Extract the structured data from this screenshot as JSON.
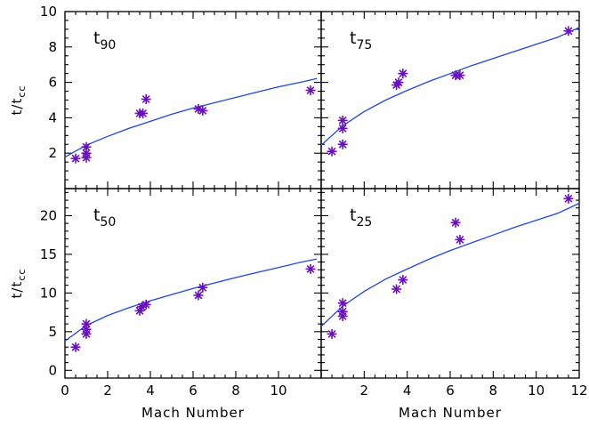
{
  "chart_data": [
    {
      "type": "scatter",
      "panel_label": "t",
      "panel_label_sub": "90",
      "xlim": [
        0,
        12
      ],
      "ylim": [
        0,
        10
      ],
      "xticks": [
        0,
        2,
        4,
        6,
        8,
        10
      ],
      "yticks": [
        2,
        4,
        6,
        8,
        10
      ],
      "ylabel": "t/t",
      "ylabel_sub": "cc",
      "xlabel": "",
      "points": [
        [
          0.5,
          1.7
        ],
        [
          1.0,
          1.75
        ],
        [
          1.0,
          2.0
        ],
        [
          1.0,
          2.35
        ],
        [
          3.5,
          4.25
        ],
        [
          3.65,
          4.25
        ],
        [
          3.8,
          5.05
        ],
        [
          6.25,
          4.5
        ],
        [
          6.45,
          4.4
        ],
        [
          11.5,
          5.55
        ]
      ],
      "fit": [
        [
          0,
          1.78
        ],
        [
          1,
          2.45
        ],
        [
          2,
          2.95
        ],
        [
          3,
          3.4
        ],
        [
          4,
          3.8
        ],
        [
          5,
          4.2
        ],
        [
          6,
          4.55
        ],
        [
          7,
          4.85
        ],
        [
          8,
          5.15
        ],
        [
          9,
          5.45
        ],
        [
          10,
          5.75
        ],
        [
          11,
          6.0
        ],
        [
          11.8,
          6.22
        ]
      ]
    },
    {
      "type": "scatter",
      "panel_label": "t",
      "panel_label_sub": "75",
      "xlim": [
        0,
        12
      ],
      "ylim": [
        0,
        10
      ],
      "xticks": [],
      "yticks": [],
      "ylabel": "",
      "ylabel_sub": "",
      "xlabel": "",
      "points": [
        [
          0.5,
          2.1
        ],
        [
          1.0,
          2.5
        ],
        [
          1.0,
          3.4
        ],
        [
          1.0,
          3.85
        ],
        [
          3.5,
          5.85
        ],
        [
          3.6,
          6.0
        ],
        [
          3.8,
          6.5
        ],
        [
          6.25,
          6.4
        ],
        [
          6.45,
          6.4
        ],
        [
          11.5,
          8.9
        ]
      ],
      "fit": [
        [
          0,
          2.45
        ],
        [
          1,
          3.55
        ],
        [
          2,
          4.35
        ],
        [
          3,
          5.0
        ],
        [
          4,
          5.55
        ],
        [
          5,
          6.05
        ],
        [
          6,
          6.5
        ],
        [
          7,
          6.95
        ],
        [
          8,
          7.35
        ],
        [
          9,
          7.75
        ],
        [
          10,
          8.15
        ],
        [
          11,
          8.55
        ],
        [
          12,
          9.1
        ]
      ]
    },
    {
      "type": "scatter",
      "panel_label": "t",
      "panel_label_sub": "50",
      "xlim": [
        0,
        12
      ],
      "ylim": [
        -1,
        23.5
      ],
      "xticks": [
        0,
        2,
        4,
        6,
        8,
        10
      ],
      "yticks": [
        0,
        5,
        10,
        15,
        20
      ],
      "ylabel": "t/t",
      "ylabel_sub": "cc",
      "xlabel": "Mach Number",
      "points": [
        [
          0.5,
          3.0
        ],
        [
          1.0,
          4.7
        ],
        [
          1.0,
          5.3
        ],
        [
          1.0,
          6.0
        ],
        [
          3.5,
          7.7
        ],
        [
          3.6,
          8.2
        ],
        [
          3.8,
          8.5
        ],
        [
          6.25,
          9.7
        ],
        [
          6.45,
          10.7
        ],
        [
          11.5,
          13.1
        ]
      ],
      "fit": [
        [
          0,
          3.8
        ],
        [
          1,
          5.8
        ],
        [
          2,
          7.1
        ],
        [
          3,
          8.1
        ],
        [
          4,
          9.0
        ],
        [
          5,
          9.8
        ],
        [
          6,
          10.6
        ],
        [
          7,
          11.3
        ],
        [
          8,
          12.0
        ],
        [
          9,
          12.65
        ],
        [
          10,
          13.3
        ],
        [
          11,
          13.95
        ],
        [
          11.8,
          14.4
        ]
      ]
    },
    {
      "type": "scatter",
      "panel_label": "t",
      "panel_label_sub": "25",
      "xlim": [
        0,
        12
      ],
      "ylim": [
        -1,
        23.5
      ],
      "xticks": [
        2,
        4,
        6,
        8,
        10,
        12
      ],
      "yticks": [],
      "ylabel": "",
      "ylabel_sub": "",
      "xlabel": "Mach Number",
      "points": [
        [
          0.5,
          4.7
        ],
        [
          1.0,
          7.0
        ],
        [
          1.0,
          7.6
        ],
        [
          1.0,
          8.7
        ],
        [
          3.5,
          10.5
        ],
        [
          3.8,
          11.7
        ],
        [
          6.25,
          19.1
        ],
        [
          6.45,
          16.9
        ],
        [
          11.5,
          22.2
        ]
      ],
      "fit": [
        [
          0,
          5.7
        ],
        [
          1,
          8.3
        ],
        [
          2,
          10.2
        ],
        [
          3,
          11.8
        ],
        [
          4,
          13.1
        ],
        [
          5,
          14.35
        ],
        [
          6,
          15.5
        ],
        [
          7,
          16.5
        ],
        [
          8,
          17.5
        ],
        [
          9,
          18.5
        ],
        [
          10,
          19.4
        ],
        [
          11,
          20.3
        ],
        [
          12,
          21.6
        ]
      ]
    }
  ],
  "colors": {
    "points": "#6a0fbf",
    "fit": "#1e46e6"
  }
}
